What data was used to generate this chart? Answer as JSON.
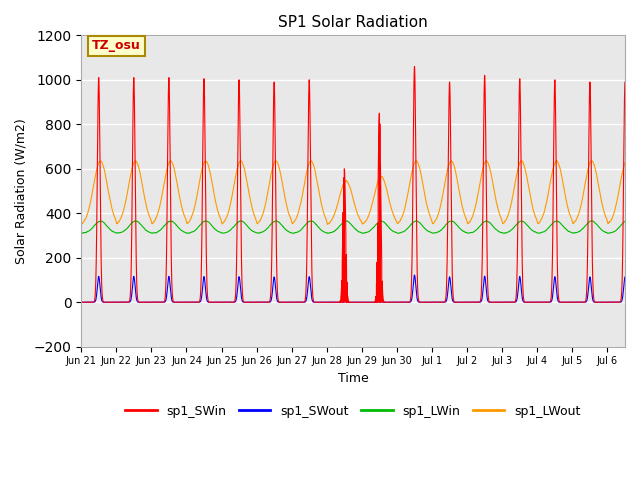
{
  "title": "SP1 Solar Radiation",
  "xlabel": "Time",
  "ylabel": "Solar Radiation (W/m2)",
  "ylim": [
    -200,
    1200
  ],
  "yticks": [
    -200,
    0,
    200,
    400,
    600,
    800,
    1000,
    1200
  ],
  "line_colors": {
    "SWin": "#ff0000",
    "SWout": "#0000ff",
    "LWin": "#00bb00",
    "LWout": "#ff9900"
  },
  "line_labels": {
    "SWin": "sp1_SWin",
    "SWout": "sp1_SWout",
    "LWin": "sp1_LWin",
    "LWout": "sp1_LWout"
  },
  "bg_color": "#e8e8e8",
  "fig_bg": "#ffffff",
  "tz_label": "TZ_osu",
  "tz_box_color": "#ffffcc",
  "tz_border_color": "#aa8800",
  "tz_text_color": "#cc0000",
  "grid_color": "#ffffff",
  "tick_labels": [
    "Jun 21",
    "Jun 22",
    "Jun 23",
    "Jun 24",
    "Jun 25",
    "Jun 26",
    "Jun 27",
    "Jun 28",
    "Jun 29",
    "Jun 30",
    "Jul 1",
    "Jul 2",
    "Jul 3",
    "Jul 4",
    "Jul 5",
    "Jul 6"
  ],
  "n_days": 15.5,
  "pts_per_day": 1440
}
